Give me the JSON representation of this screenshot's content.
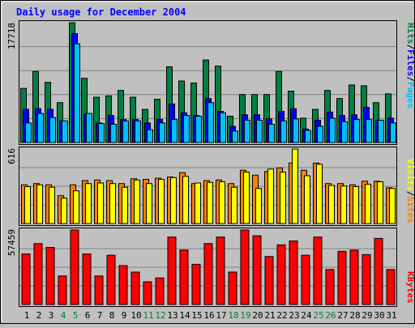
{
  "chart_data": [
    {
      "type": "bar",
      "title": "Daily usage for December 2004",
      "ymax_label": "17718",
      "legend_sep": "/",
      "categories": [
        1,
        2,
        3,
        4,
        5,
        6,
        7,
        8,
        9,
        10,
        11,
        12,
        13,
        14,
        15,
        16,
        17,
        18,
        19,
        20,
        21,
        22,
        23,
        24,
        25,
        26,
        27,
        28,
        29,
        30,
        31
      ],
      "weekend_days": [
        4,
        5,
        11,
        12,
        18,
        19,
        25,
        26
      ],
      "colors": {
        "hits": "#008040",
        "files": "#0000ff",
        "pages": "#00c0ff",
        "weekday_label": "#000000",
        "weekend_label": "#008040"
      },
      "series": [
        {
          "name": "Hits",
          "values": [
            8000,
            10500,
            8900,
            5900,
            17718,
            9500,
            6700,
            6900,
            7700,
            6700,
            4900,
            6400,
            11200,
            9100,
            8800,
            12200,
            11300,
            3900,
            7100,
            7100,
            7100,
            10500,
            7600,
            3600,
            4900,
            7700,
            6500,
            8500,
            8400,
            5900,
            7200
          ]
        },
        {
          "name": "Files",
          "values": [
            4900,
            5000,
            4900,
            3200,
            16100,
            4200,
            2900,
            4000,
            3400,
            3400,
            2900,
            3400,
            5700,
            4400,
            4000,
            6500,
            4600,
            2400,
            4100,
            4100,
            3500,
            4600,
            5000,
            2000,
            3300,
            4500,
            4000,
            4100,
            5200,
            3300,
            3600
          ]
        },
        {
          "name": "Pages",
          "values": [
            2900,
            4300,
            3700,
            3200,
            14600,
            4300,
            2800,
            2700,
            3200,
            3200,
            1900,
            2900,
            3400,
            4000,
            3900,
            5900,
            4400,
            1700,
            3300,
            3300,
            2700,
            3200,
            3500,
            1800,
            2400,
            3600,
            3100,
            3400,
            3400,
            3300,
            2900
          ]
        }
      ]
    },
    {
      "type": "bar",
      "ymax_label": "616",
      "legend_sep": "/",
      "colors": {
        "visits": "#ffff00",
        "sites": "#ff8000"
      },
      "series": [
        {
          "name": "Visits",
          "values": [
            305,
            320,
            300,
            210,
            270,
            330,
            335,
            330,
            300,
            360,
            330,
            365,
            380,
            390,
            335,
            340,
            345,
            300,
            425,
            290,
            450,
            425,
            616,
            395,
            490,
            315,
            310,
            305,
            325,
            345,
            290
          ]
        },
        {
          "name": "Sites",
          "values": [
            320,
            330,
            320,
            230,
            320,
            355,
            360,
            355,
            330,
            370,
            365,
            375,
            385,
            420,
            330,
            355,
            360,
            330,
            440,
            400,
            430,
            460,
            500,
            440,
            500,
            330,
            330,
            320,
            350,
            350,
            295
          ]
        }
      ]
    },
    {
      "type": "bar",
      "ymax_label": "57459",
      "colors": {
        "kbytes": "#ff0000"
      },
      "series": [
        {
          "name": "KBytes",
          "values": [
            39000,
            47000,
            44000,
            22000,
            57459,
            39000,
            22000,
            38000,
            30000,
            25000,
            17500,
            20500,
            52000,
            42000,
            31000,
            47000,
            52000,
            25000,
            57459,
            53000,
            37000,
            46000,
            49000,
            38000,
            52000,
            27000,
            41000,
            42000,
            38500,
            51000,
            27000
          ]
        }
      ]
    }
  ]
}
